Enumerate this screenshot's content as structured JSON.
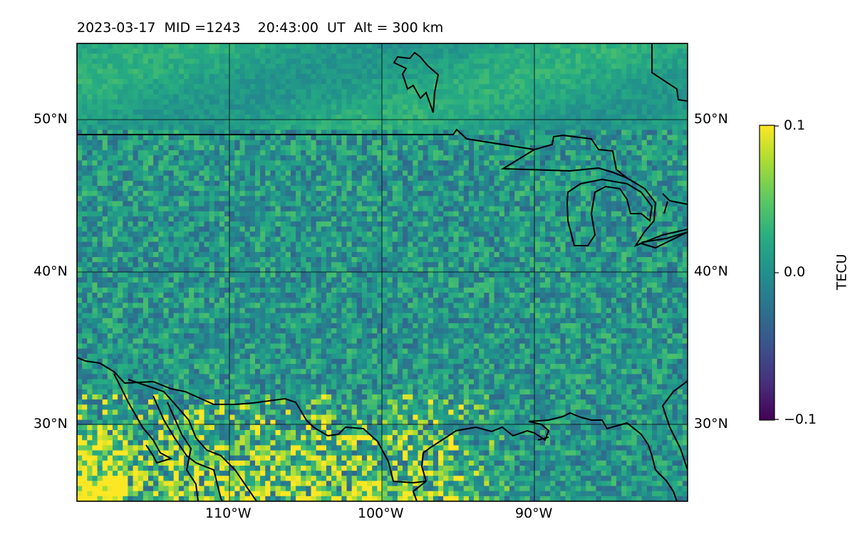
{
  "title": {
    "date": "2023-03-17",
    "mid": "MID =1243",
    "time": "20:43:00  UT",
    "altitude": "Alt = 300 km"
  },
  "map": {
    "lon_range": [
      -120,
      -80
    ],
    "lat_range": [
      25,
      55
    ],
    "lat_ticks": [
      {
        "value": 30,
        "label": "30°N"
      },
      {
        "value": 40,
        "label": "40°N"
      },
      {
        "value": 50,
        "label": "50°N"
      }
    ],
    "lon_ticks": [
      {
        "value": -110,
        "label": "110°W"
      },
      {
        "value": -100,
        "label": "100°W"
      },
      {
        "value": -90,
        "label": "90°W"
      }
    ],
    "gridlines": true,
    "colormap": "viridis"
  },
  "colorbar": {
    "label": "TECU",
    "range": [
      -0.1,
      0.1
    ],
    "ticks": [
      {
        "value": 0.1,
        "label": "0.1"
      },
      {
        "value": 0.0,
        "label": "0.0"
      },
      {
        "value": -0.1,
        "label": "−0.1"
      }
    ],
    "colors": [
      "#440154",
      "#3b528b",
      "#21908c",
      "#5dc863",
      "#fde725"
    ]
  }
}
